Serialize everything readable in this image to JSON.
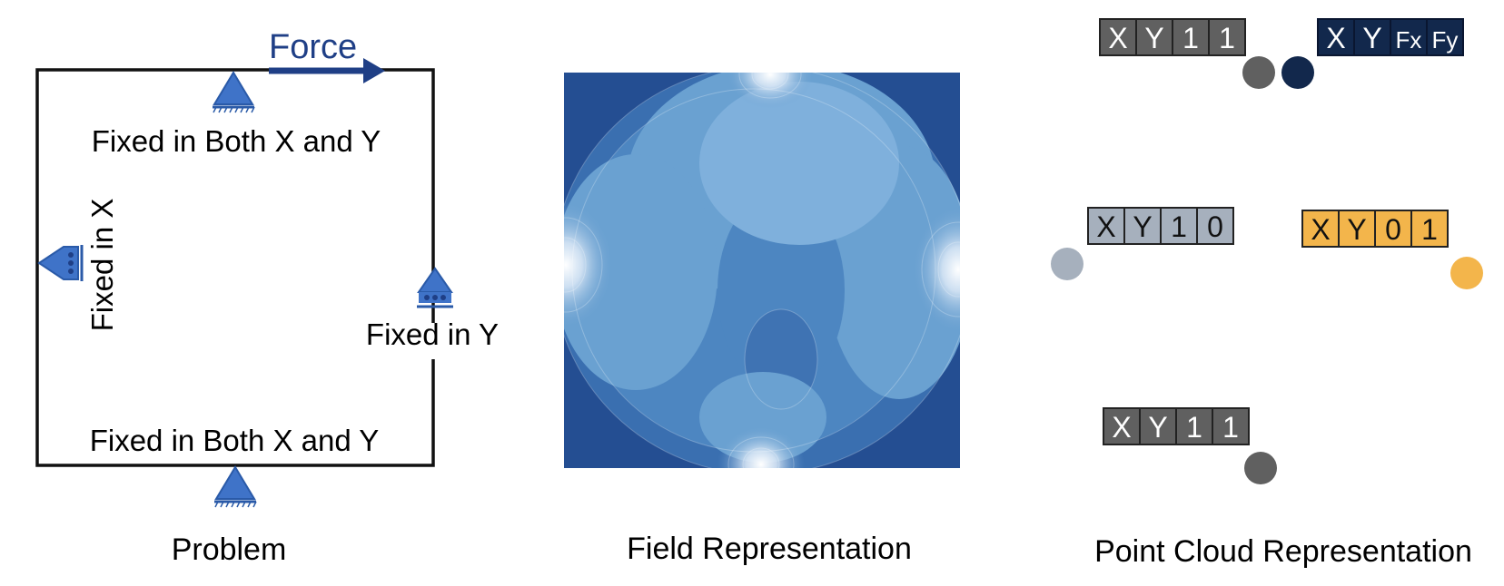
{
  "problem": {
    "force_label": "Force",
    "fixed_top": "Fixed in Both X and Y",
    "fixed_bottom": "Fixed in Both X and Y",
    "fixed_left": "Fixed in X",
    "fixed_right": "Fixed in Y",
    "caption": "Problem"
  },
  "field": {
    "caption": "Field Representation"
  },
  "point_cloud": {
    "caption": "Point Cloud Representation",
    "top_left_tuple": [
      "X",
      "Y",
      "1",
      "1"
    ],
    "top_right_tuple": [
      "X",
      "Y",
      "Fx",
      "Fy"
    ],
    "mid_left_tuple": [
      "X",
      "Y",
      "1",
      "0"
    ],
    "mid_right_tuple": [
      "X",
      "Y",
      "0",
      "1"
    ],
    "bottom_tuple": [
      "X",
      "Y",
      "1",
      "1"
    ]
  },
  "colors": {
    "support_blue": "#3f73c8",
    "frame": "#111111",
    "force_navy": "#1f3f86",
    "tuple_dark_gray": "#606060",
    "tuple_navy": "#12284c",
    "tuple_light_gray": "#a6b0bd",
    "tuple_orange": "#f3b54b"
  }
}
